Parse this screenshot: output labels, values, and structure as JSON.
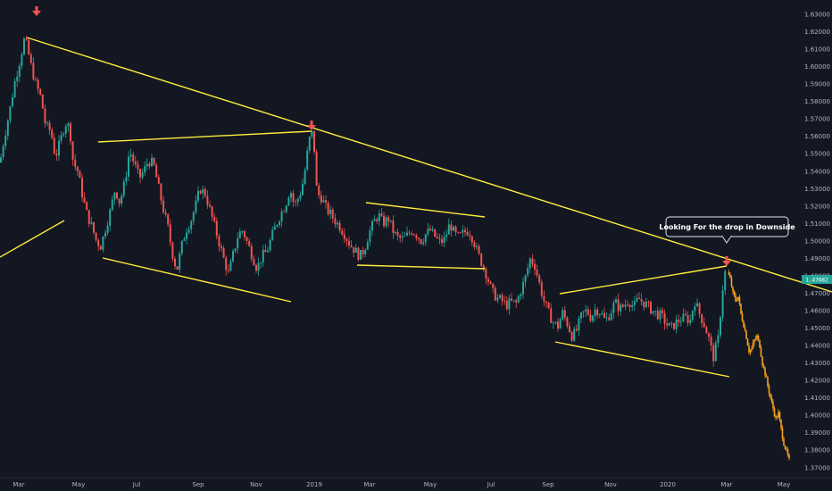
{
  "chart_data": {
    "type": "candlestick",
    "y_axis": {
      "position": "right",
      "ticks": [
        "1.63000",
        "1.62000",
        "1.61000",
        "1.60000",
        "1.59000",
        "1.58000",
        "1.57000",
        "1.56000",
        "1.55000",
        "1.54000",
        "1.53000",
        "1.52000",
        "1.51000",
        "1.50000",
        "1.49000",
        "1.48000",
        "1.47000",
        "1.46000",
        "1.45000",
        "1.44000",
        "1.43000",
        "1.42000",
        "1.41000",
        "1.40000",
        "1.39000",
        "1.38000",
        "1.37000"
      ],
      "ylim": [
        1.3695,
        1.6365
      ]
    },
    "x_axis": {
      "ticks": [
        "Mar",
        "May",
        "Jul",
        "Sep",
        "Nov",
        "2019",
        "Mar",
        "May",
        "Jul",
        "Sep",
        "Nov",
        "2020",
        "Mar",
        "May"
      ]
    },
    "last_price": "1.47682",
    "annotation": "Looking For the drop in Downside",
    "colors": {
      "background": "#131722",
      "up": "#26a69a",
      "down": "#ef5350",
      "projection": "#f7a21b",
      "trendline": "#ffeb3b",
      "arrow": "#ef5350",
      "axis_text": "#b2b5be"
    },
    "waypoints": [
      [
        0,
        1.545
      ],
      [
        5,
        1.56
      ],
      [
        11,
        1.575
      ],
      [
        16,
        1.59
      ],
      [
        22,
        1.603
      ],
      [
        27,
        1.615
      ],
      [
        30,
        1.612
      ],
      [
        35,
        1.6
      ],
      [
        40,
        1.59
      ],
      [
        46,
        1.582
      ],
      [
        51,
        1.566
      ],
      [
        57,
        1.563
      ],
      [
        62,
        1.548
      ],
      [
        68,
        1.558
      ],
      [
        73,
        1.568
      ],
      [
        78,
        1.565
      ],
      [
        82,
        1.545
      ],
      [
        87,
        1.54
      ],
      [
        92,
        1.527
      ],
      [
        97,
        1.516
      ],
      [
        103,
        1.508
      ],
      [
        108,
        1.5
      ],
      [
        113,
        1.497
      ],
      [
        118,
        1.507
      ],
      [
        123,
        1.516
      ],
      [
        129,
        1.53
      ],
      [
        134,
        1.522
      ],
      [
        140,
        1.534
      ],
      [
        145,
        1.552
      ],
      [
        150,
        1.545
      ],
      [
        156,
        1.536
      ],
      [
        161,
        1.54
      ],
      [
        166,
        1.546
      ],
      [
        172,
        1.544
      ],
      [
        177,
        1.532
      ],
      [
        182,
        1.52
      ],
      [
        188,
        1.508
      ],
      [
        193,
        1.493
      ],
      [
        198,
        1.483
      ],
      [
        203,
        1.496
      ],
      [
        208,
        1.506
      ],
      [
        214,
        1.512
      ],
      [
        219,
        1.52
      ],
      [
        224,
        1.53
      ],
      [
        230,
        1.527
      ],
      [
        235,
        1.518
      ],
      [
        240,
        1.509
      ],
      [
        246,
        1.498
      ],
      [
        251,
        1.489
      ],
      [
        256,
        1.481
      ],
      [
        262,
        1.494
      ],
      [
        267,
        1.504
      ],
      [
        272,
        1.506
      ],
      [
        277,
        1.499
      ],
      [
        283,
        1.491
      ],
      [
        288,
        1.484
      ],
      [
        293,
        1.491
      ],
      [
        299,
        1.494
      ],
      [
        304,
        1.502
      ],
      [
        309,
        1.509
      ],
      [
        314,
        1.515
      ],
      [
        320,
        1.521
      ],
      [
        325,
        1.53
      ],
      [
        330,
        1.52
      ],
      [
        336,
        1.527
      ],
      [
        340,
        1.535
      ],
      [
        345,
        1.553
      ],
      [
        348,
        1.562
      ],
      [
        351,
        1.561
      ],
      [
        355,
        1.527
      ],
      [
        360,
        1.525
      ],
      [
        366,
        1.518
      ],
      [
        371,
        1.515
      ],
      [
        376,
        1.511
      ],
      [
        381,
        1.508
      ],
      [
        387,
        1.503
      ],
      [
        392,
        1.498
      ],
      [
        397,
        1.495
      ],
      [
        403,
        1.491
      ],
      [
        408,
        1.495
      ],
      [
        413,
        1.504
      ],
      [
        419,
        1.511
      ],
      [
        424,
        1.515
      ],
      [
        429,
        1.51
      ],
      [
        435,
        1.513
      ],
      [
        440,
        1.506
      ],
      [
        445,
        1.502
      ],
      [
        451,
        1.501
      ],
      [
        456,
        1.503
      ],
      [
        461,
        1.506
      ],
      [
        466,
        1.504
      ],
      [
        472,
        1.5
      ],
      [
        477,
        1.504
      ],
      [
        482,
        1.506
      ],
      [
        488,
        1.502
      ],
      [
        493,
        1.499
      ],
      [
        498,
        1.501
      ],
      [
        504,
        1.51
      ],
      [
        509,
        1.504
      ],
      [
        514,
        1.502
      ],
      [
        520,
        1.505
      ],
      [
        525,
        1.506
      ],
      [
        530,
        1.501
      ],
      [
        535,
        1.493
      ],
      [
        541,
        1.486
      ],
      [
        546,
        1.479
      ],
      [
        551,
        1.471
      ],
      [
        557,
        1.467
      ],
      [
        562,
        1.466
      ],
      [
        567,
        1.463
      ],
      [
        572,
        1.465
      ],
      [
        578,
        1.464
      ],
      [
        583,
        1.471
      ],
      [
        588,
        1.478
      ],
      [
        594,
        1.49
      ],
      [
        599,
        1.486
      ],
      [
        604,
        1.476
      ],
      [
        609,
        1.466
      ],
      [
        615,
        1.458
      ],
      [
        620,
        1.453
      ],
      [
        625,
        1.451
      ],
      [
        630,
        1.459
      ],
      [
        636,
        1.452
      ],
      [
        641,
        1.445
      ],
      [
        646,
        1.449
      ],
      [
        652,
        1.458
      ],
      [
        657,
        1.46
      ],
      [
        662,
        1.456
      ],
      [
        667,
        1.461
      ],
      [
        673,
        1.459
      ],
      [
        678,
        1.454
      ],
      [
        683,
        1.458
      ],
      [
        689,
        1.465
      ],
      [
        694,
        1.461
      ],
      [
        699,
        1.463
      ],
      [
        704,
        1.466
      ],
      [
        710,
        1.462
      ],
      [
        715,
        1.467
      ],
      [
        720,
        1.465
      ],
      [
        725,
        1.463
      ],
      [
        731,
        1.46
      ],
      [
        736,
        1.458
      ],
      [
        741,
        1.457
      ],
      [
        747,
        1.452
      ],
      [
        752,
        1.45
      ],
      [
        757,
        1.453
      ],
      [
        762,
        1.455
      ],
      [
        768,
        1.456
      ],
      [
        773,
        1.454
      ],
      [
        778,
        1.466
      ],
      [
        783,
        1.459
      ],
      [
        789,
        1.452
      ],
      [
        794,
        1.444
      ],
      [
        799,
        1.433
      ],
      [
        805,
        1.445
      ],
      [
        808,
        1.465
      ],
      [
        811,
        1.48
      ],
      [
        814,
        1.485
      ]
    ],
    "projection": [
      [
        815,
        1.482
      ],
      [
        818,
        1.478
      ],
      [
        821,
        1.47
      ],
      [
        824,
        1.466
      ],
      [
        827,
        1.468
      ],
      [
        830,
        1.458
      ],
      [
        833,
        1.452
      ],
      [
        836,
        1.445
      ],
      [
        839,
        1.437
      ],
      [
        842,
        1.438
      ],
      [
        845,
        1.443
      ],
      [
        848,
        1.445
      ],
      [
        851,
        1.44
      ],
      [
        854,
        1.43
      ],
      [
        857,
        1.424
      ],
      [
        860,
        1.417
      ],
      [
        863,
        1.41
      ],
      [
        866,
        1.404
      ],
      [
        869,
        1.398
      ],
      [
        872,
        1.401
      ],
      [
        875,
        1.392
      ],
      [
        878,
        1.384
      ],
      [
        881,
        1.379
      ],
      [
        884,
        1.374
      ]
    ]
  }
}
